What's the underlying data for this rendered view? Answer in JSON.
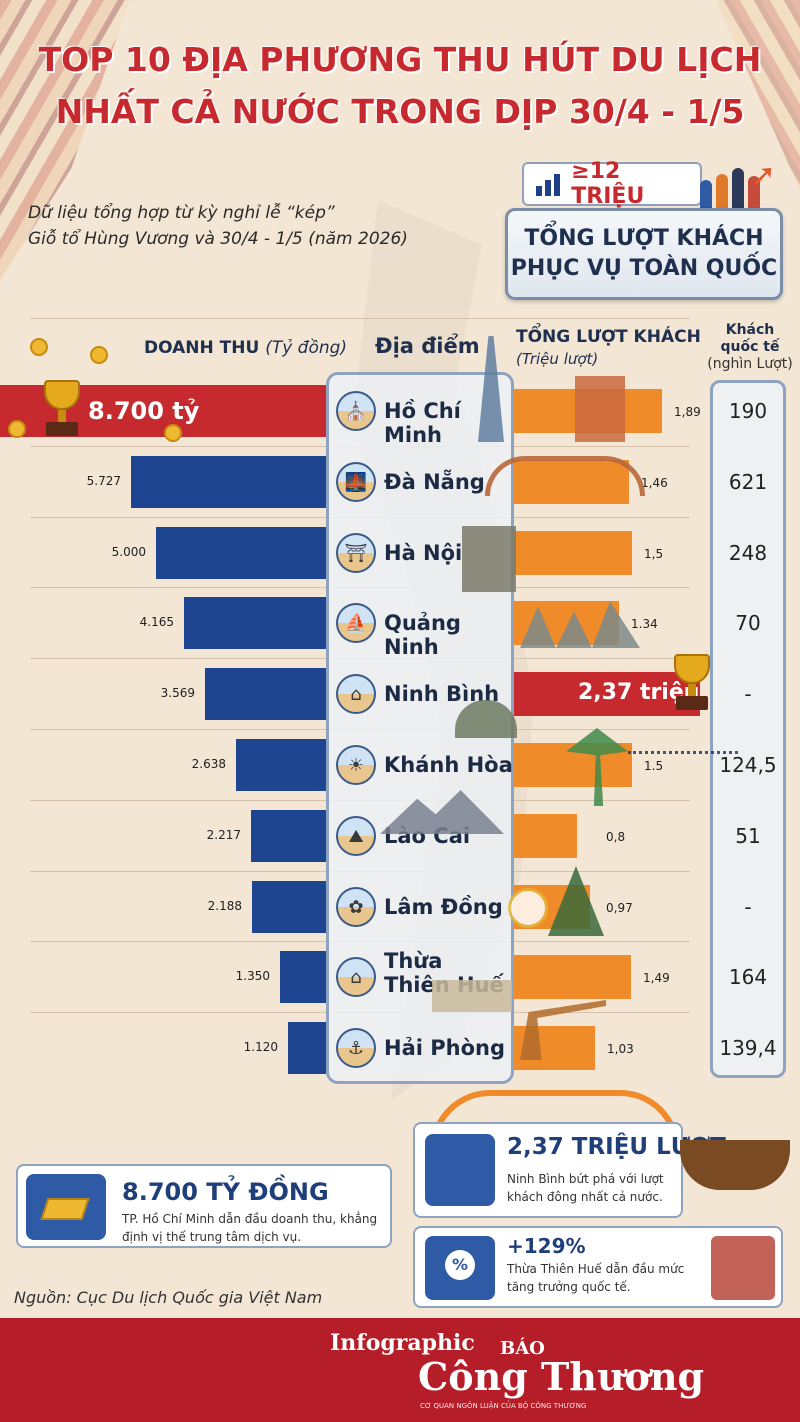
{
  "title_line1": "TOP 10 ĐỊA PHƯƠNG THU HÚT DU LỊCH",
  "title_line2": "NHẤT CẢ NƯỚC TRONG DỊP 30/4 - 1/5",
  "subtitle_line1": "Dữ liệu tổng hợp từ kỳ nghỉ lễ “kép”",
  "subtitle_line2": "Giỗ tổ Hùng Vương và 30/4 - 1/5 (năm 2026)",
  "total_badge": "≥12 TRIỆU",
  "total_label_line1": "TỔNG LƯỢT KHÁCH",
  "total_label_line2": "PHỤC VỤ TOÀN QUỐC",
  "headers": {
    "revenue": "DOANH THU",
    "revenue_unit": "(Tỷ đồng)",
    "location": "Địa điểm",
    "visitors": "TỔNG LƯỢT KHÁCH",
    "visitors_unit": "(Triệu lượt)",
    "intl_line1": "Khách",
    "intl_line2": "quốc tế",
    "intl_unit": "(nghìn Lượt)"
  },
  "colors": {
    "title_red": "#c62a2f",
    "revenue_bar": "#1e4690",
    "revenue_highlight": "#c62a2f",
    "visitors_bar": "#f08b2a",
    "visitors_highlight": "#c62a2f"
  },
  "chart_data": {
    "type": "bar",
    "categories": [
      "Hồ Chí Minh",
      "Đà Nẵng",
      "Hà Nội",
      "Quảng Ninh",
      "Ninh Bình",
      "Khánh Hòa",
      "Lào Cai",
      "Lâm Đồng",
      "Thừa Thiên Huế",
      "Hải Phòng"
    ],
    "series": [
      {
        "name": "DOANH THU (Tỷ đồng)",
        "values": [
          8700,
          5727,
          5000,
          4165,
          3569,
          2638,
          2217,
          2188,
          1350,
          1120
        ],
        "labels": [
          "8.700 tỷ",
          "5.727",
          "5.000",
          "4.165",
          "3.569",
          "2.638",
          "2.217",
          "2.188",
          "1.350",
          "1.120"
        ]
      },
      {
        "name": "TỔNG LƯỢT KHÁCH (Triệu lượt)",
        "values": [
          1.89,
          1.46,
          1.5,
          1.34,
          2.37,
          1.5,
          0.8,
          0.97,
          1.49,
          1.03
        ],
        "labels": [
          "1,89",
          "1,46",
          "1,5",
          "1.34",
          "2,37 triệu",
          "1.5",
          "0,8",
          "0,97",
          "1,49",
          "1,03"
        ]
      },
      {
        "name": "Khách quốc tế (nghìn Lượt)",
        "values": [
          190,
          621,
          248,
          70,
          null,
          124.5,
          51,
          null,
          164,
          139.4
        ],
        "labels": [
          "190",
          "621",
          "248",
          "70",
          "-",
          "124,5",
          "51",
          "-",
          "164",
          "139,4"
        ]
      }
    ]
  },
  "cards": {
    "revenue_title": "8.700 TỶ ĐỒNG",
    "revenue_text": "TP. Hồ Chí Minh dẫn đầu doanh thu, khẳng định vị thế trung tâm dịch vụ.",
    "visitors_title": "2,37 TRIỆU LƯỢT",
    "visitors_text": "Ninh Bình bứt phá với lượt khách đông nhất cả nước.",
    "growth_title": "+129%",
    "growth_text": "Thừa Thiên Huế dẫn đầu mức tăng trưởng quốc tế."
  },
  "source": "Nguồn: Cục Du lịch Quốc gia Việt Nam",
  "footer": {
    "kicker": "Infographic",
    "brand_top": "BÁO",
    "brand": "Công Thương",
    "tagline": "CƠ QUAN NGÔN LUẬN CỦA BỘ CÔNG THƯƠNG"
  }
}
